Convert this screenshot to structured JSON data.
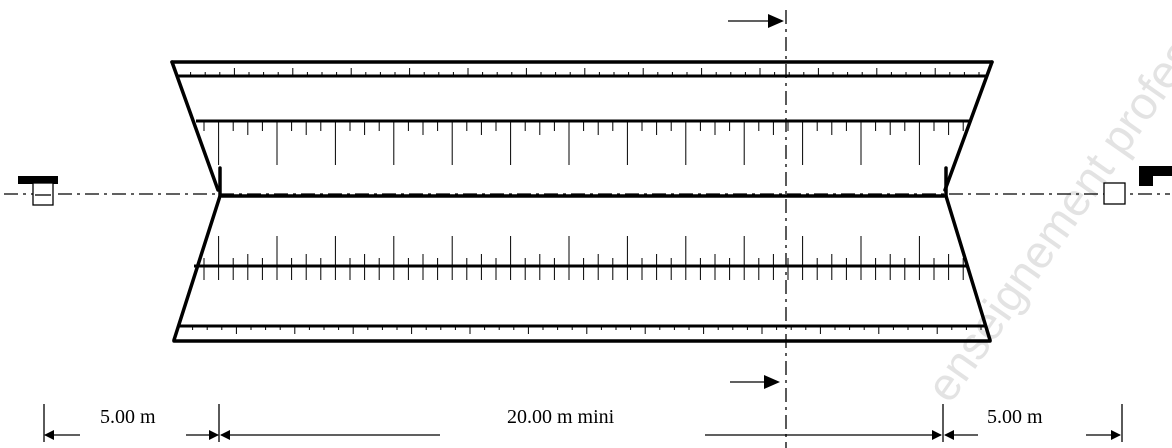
{
  "dimensions": {
    "left_clearance": "5.00 m",
    "track_length": "20.00 m mini",
    "right_clearance": "5.00 m"
  },
  "watermark": "enseignement professionnel",
  "colors": {
    "ink": "#000000",
    "watermark": "#e3e3e3"
  },
  "icons": [
    "hurdle-marker-icon",
    "section-arrow-icon",
    "dimension-arrow-icon"
  ]
}
